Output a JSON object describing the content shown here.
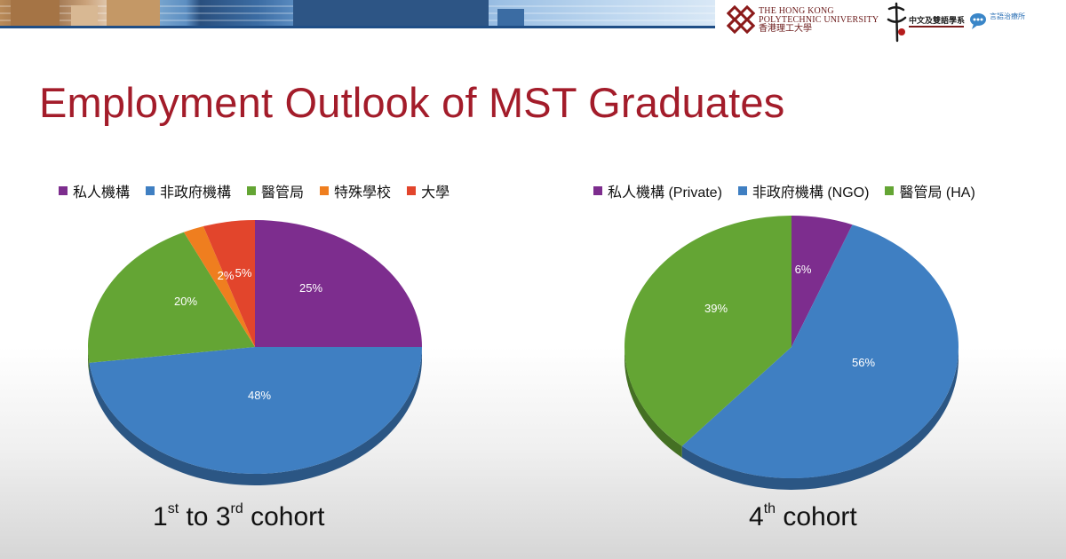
{
  "header": {
    "polyu_logo": {
      "line1": "THE HONG KONG",
      "line2": "POLYTECHNIC UNIVERSITY",
      "line3": "香港理工大學"
    },
    "dept_logo_text": "中文及雙語學系",
    "unit_logo_text": "言語治療所"
  },
  "slide": {
    "title": "Employment Outlook of MST Graduates"
  },
  "chart_data": [
    {
      "type": "pie",
      "title": "",
      "categories": [
        "私人機構",
        "非政府機構",
        "醫管局",
        "特殊學校",
        "大學"
      ],
      "values": [
        25,
        48,
        20,
        2,
        5
      ],
      "labels": [
        "25%",
        "48%",
        "20%",
        "2%",
        "5%"
      ],
      "colors": [
        "#7d2d8e",
        "#3f7fc2",
        "#64a534",
        "#ef7e1f",
        "#e2452c"
      ],
      "legend_position": "top",
      "caption": {
        "ordinal": "1",
        "sup1": "st",
        "mid": " to 3",
        "sup2": "rd",
        "rest": " cohort"
      }
    },
    {
      "type": "pie",
      "title": "",
      "categories": [
        "私人機構 (Private)",
        "非政府機構 (NGO)",
        "醫管局 (HA)"
      ],
      "values": [
        6,
        56,
        39
      ],
      "labels": [
        "6%",
        "56%",
        "39%"
      ],
      "colors": [
        "#7d2d8e",
        "#3f7fc2",
        "#64a534"
      ],
      "legend_position": "top",
      "caption": {
        "ordinal": "4",
        "sup1": "th",
        "rest": " cohort"
      }
    }
  ]
}
